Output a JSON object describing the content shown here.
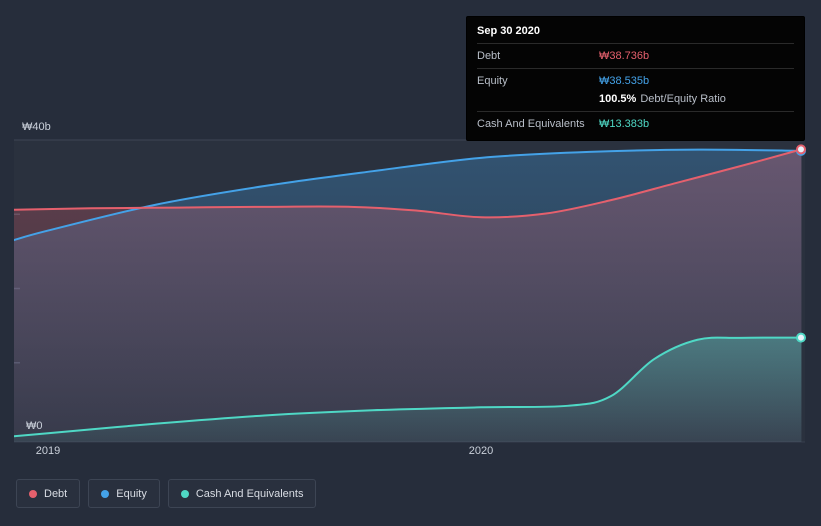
{
  "page": {
    "background": "#262d3b"
  },
  "tooltip": {
    "date": "Sep 30 2020",
    "debt": {
      "label": "Debt",
      "value": "₩38.736b",
      "color": "#e5606d"
    },
    "equity": {
      "label": "Equity",
      "value": "₩38.535b",
      "color": "#44a2e8"
    },
    "ratio": {
      "value": "100.5%",
      "suffix": "Debt/Equity Ratio"
    },
    "cash": {
      "label": "Cash And Equivalents",
      "value": "₩13.383b",
      "color": "#4fd8c5"
    }
  },
  "legend": [
    {
      "label": "Debt",
      "color": "#e5606d"
    },
    {
      "label": "Equity",
      "color": "#44a2e8"
    },
    {
      "label": "Cash And Equivalents",
      "color": "#4fd8c5"
    }
  ],
  "chart_data": {
    "type": "area",
    "x_axis": {
      "tick_labels": [
        "2019",
        "2020"
      ],
      "tick_years": [
        2019,
        2020
      ],
      "range_years": [
        2018.92,
        2020.75
      ]
    },
    "y_axis": {
      "tick_labels": [
        "₩40b",
        "₩0"
      ],
      "range": [
        0,
        40
      ],
      "unit": "billion KRW",
      "minor_ticks": [
        10,
        20,
        30
      ]
    },
    "series": [
      {
        "name": "Debt",
        "color": "#e5606d",
        "x": [
          2018.92,
          2019.1,
          2019.3,
          2019.5,
          2019.7,
          2019.85,
          2020.0,
          2020.15,
          2020.3,
          2020.45,
          2020.6,
          2020.74
        ],
        "values": [
          30.6,
          30.8,
          30.9,
          31.0,
          31.0,
          30.5,
          29.6,
          30.1,
          31.9,
          34.2,
          36.5,
          38.736
        ]
      },
      {
        "name": "Equity",
        "color": "#44a2e8",
        "x": [
          2018.92,
          2019.0,
          2019.25,
          2019.5,
          2019.75,
          2020.0,
          2020.25,
          2020.5,
          2020.74
        ],
        "values": [
          26.5,
          27.8,
          31.3,
          33.8,
          35.8,
          37.6,
          38.4,
          38.7,
          38.535
        ]
      },
      {
        "name": "Cash And Equivalents",
        "color": "#4fd8c5",
        "x": [
          2018.92,
          2019.0,
          2019.25,
          2019.5,
          2019.75,
          2020.0,
          2020.2,
          2020.3,
          2020.4,
          2020.5,
          2020.6,
          2020.74
        ],
        "values": [
          0.1,
          0.5,
          1.8,
          2.9,
          3.6,
          4.0,
          4.2,
          5.5,
          10.5,
          13.1,
          13.35,
          13.383
        ]
      }
    ]
  }
}
